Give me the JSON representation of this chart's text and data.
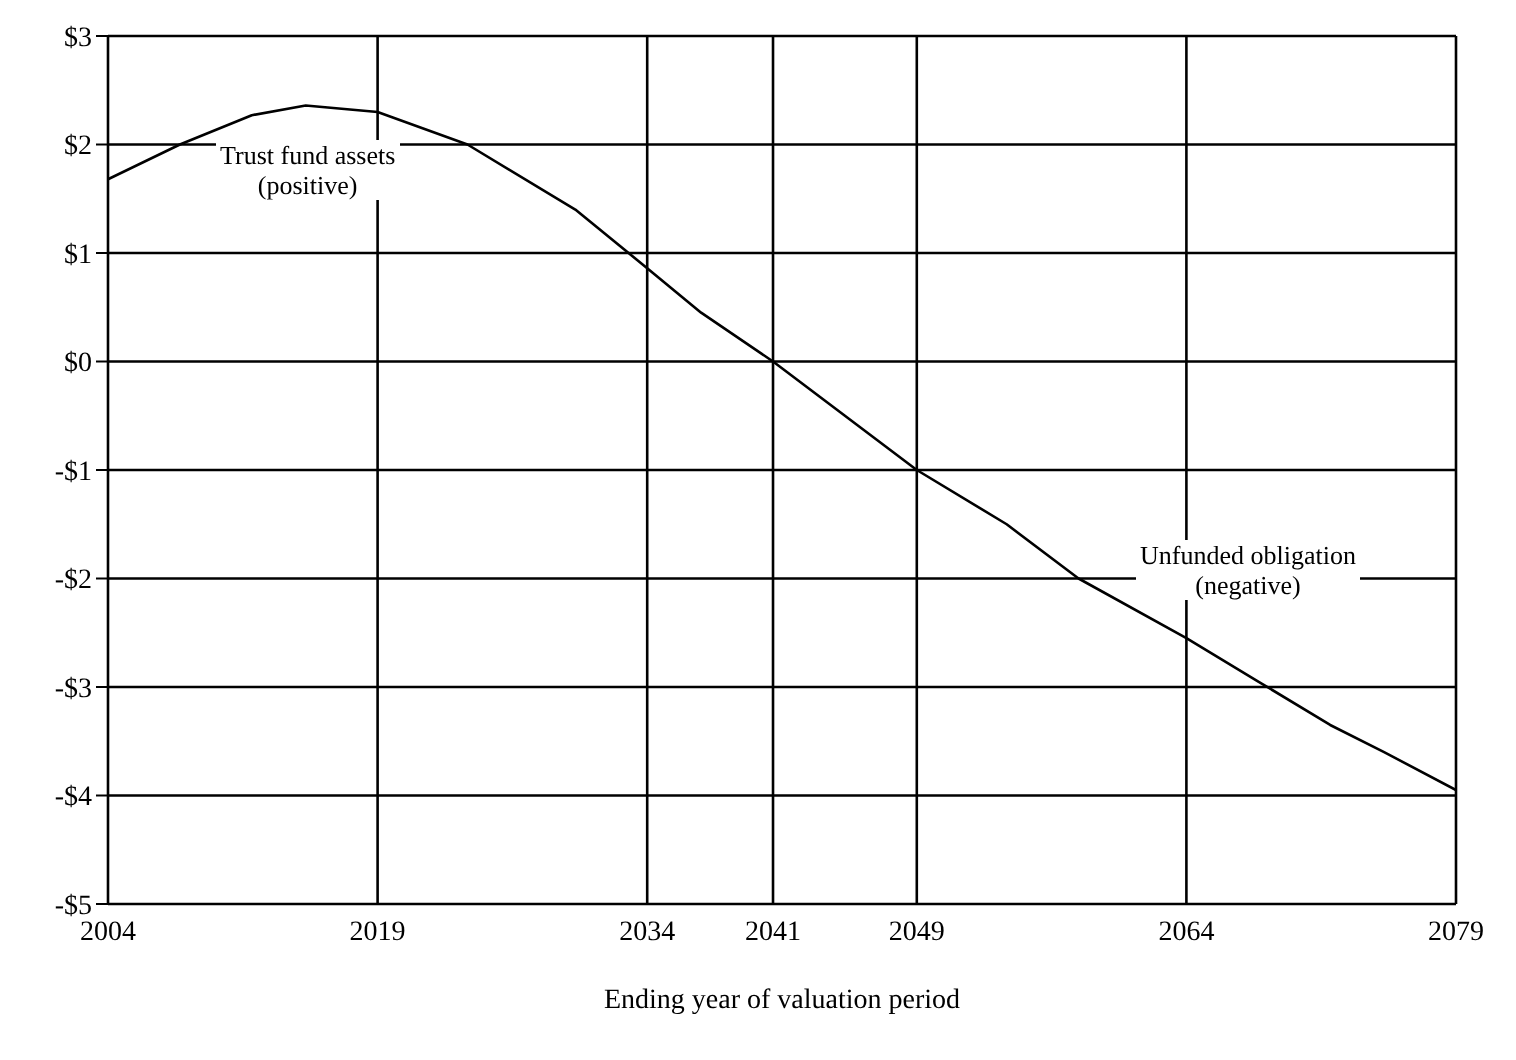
{
  "chart_data": {
    "type": "line",
    "xlabel": "Ending year of valuation period",
    "x": [
      2004,
      2008,
      2012,
      2015,
      2019,
      2024,
      2030,
      2034,
      2037,
      2041,
      2045,
      2049,
      2054,
      2058,
      2064,
      2068,
      2072,
      2075,
      2079
    ],
    "series": [
      {
        "color": "#000000",
        "values": [
          1.68,
          2.0,
          2.27,
          2.36,
          2.3,
          2.0,
          1.4,
          0.86,
          0.45,
          0,
          -0.5,
          -1.0,
          -1.5,
          -2.0,
          -2.55,
          -2.95,
          -3.35,
          -3.6,
          -3.95
        ]
      }
    ],
    "xlim": [
      2004,
      2079
    ],
    "xticks": [
      2004,
      2019,
      2034,
      2041,
      2049,
      2064,
      2079
    ],
    "ylim": [
      -5,
      3
    ],
    "yticks": [
      {
        "value": 3,
        "label": "$3"
      },
      {
        "value": 2,
        "label": "$2"
      },
      {
        "value": 1,
        "label": "$1"
      },
      {
        "value": 0,
        "label": "$0"
      },
      {
        "value": -1,
        "label": "-$1"
      },
      {
        "value": -2,
        "label": "-$2"
      },
      {
        "value": -3,
        "label": "-$3"
      },
      {
        "value": -4,
        "label": "-$4"
      },
      {
        "value": -5,
        "label": "-$5"
      }
    ],
    "annotations": [
      "Trust fund assets\n(positive)",
      "Unfunded obligation\n(negative)"
    ],
    "grid": true,
    "marker": "none",
    "line_style": "solid",
    "legend": false
  }
}
